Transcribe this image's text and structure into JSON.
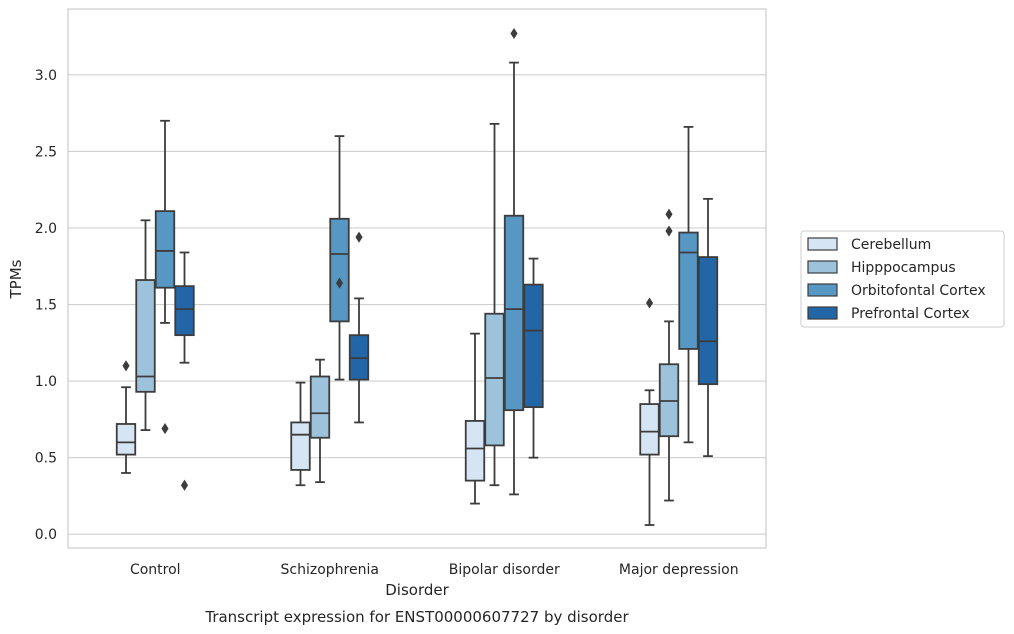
{
  "chart_data": {
    "type": "box",
    "title": "",
    "xlabel": "Disorder",
    "ylabel": "TPMs",
    "caption": "Transcript expression for ENST00000607727 by disorder",
    "ylim": [
      -0.09,
      3.43
    ],
    "yticks": [
      0.0,
      0.5,
      1.0,
      1.5,
      2.0,
      2.5,
      3.0
    ],
    "ytick_labels": [
      "0.0",
      "0.5",
      "1.0",
      "1.5",
      "2.0",
      "2.5",
      "3.0"
    ],
    "grid": "horizontal",
    "legend_position": "right",
    "categories": [
      "Control",
      "Schizophrenia",
      "Bipolar disorder",
      "Major depression"
    ],
    "series": [
      {
        "name": "Cerebellum",
        "color": "#d6e5f3",
        "boxes": [
          {
            "whislo": 0.4,
            "q1": 0.52,
            "med": 0.6,
            "q3": 0.72,
            "whishi": 0.96,
            "fliers": [
              1.1
            ]
          },
          {
            "whislo": 0.32,
            "q1": 0.42,
            "med": 0.65,
            "q3": 0.73,
            "whishi": 0.99,
            "fliers": []
          },
          {
            "whislo": 0.2,
            "q1": 0.35,
            "med": 0.56,
            "q3": 0.74,
            "whishi": 1.31,
            "fliers": []
          },
          {
            "whislo": 0.06,
            "q1": 0.52,
            "med": 0.67,
            "q3": 0.85,
            "whishi": 0.94,
            "fliers": [
              1.51
            ]
          }
        ]
      },
      {
        "name": "Hipppocampus",
        "color": "#9dc2dc",
        "boxes": [
          {
            "whislo": 0.68,
            "q1": 0.93,
            "med": 1.03,
            "q3": 1.66,
            "whishi": 2.05,
            "fliers": []
          },
          {
            "whislo": 0.34,
            "q1": 0.63,
            "med": 0.79,
            "q3": 1.03,
            "whishi": 1.14,
            "fliers": []
          },
          {
            "whislo": 0.32,
            "q1": 0.58,
            "med": 1.02,
            "q3": 1.44,
            "whishi": 2.68,
            "fliers": []
          },
          {
            "whislo": 0.22,
            "q1": 0.64,
            "med": 0.87,
            "q3": 1.11,
            "whishi": 1.39,
            "fliers": [
              1.98,
              2.09
            ]
          }
        ]
      },
      {
        "name": "Orbitofontal Cortex",
        "color": "#5797c4",
        "boxes": [
          {
            "whislo": 1.38,
            "q1": 1.61,
            "med": 1.85,
            "q3": 2.11,
            "whishi": 2.7,
            "fliers": [
              0.69
            ]
          },
          {
            "whislo": 1.01,
            "q1": 1.39,
            "med": 1.83,
            "q3": 2.06,
            "whishi": 2.6,
            "fliers": [
              1.64
            ]
          },
          {
            "whislo": 0.26,
            "q1": 0.81,
            "med": 1.47,
            "q3": 2.08,
            "whishi": 3.08,
            "fliers": [
              3.27
            ]
          },
          {
            "whislo": 0.6,
            "q1": 1.21,
            "med": 1.84,
            "q3": 1.97,
            "whishi": 2.66,
            "fliers": []
          }
        ]
      },
      {
        "name": "Prefrontal Cortex",
        "color": "#2366a8",
        "boxes": [
          {
            "whislo": 1.12,
            "q1": 1.3,
            "med": 1.47,
            "q3": 1.62,
            "whishi": 1.84,
            "fliers": [
              0.32
            ]
          },
          {
            "whislo": 0.73,
            "q1": 1.01,
            "med": 1.15,
            "q3": 1.3,
            "whishi": 1.54,
            "fliers": [
              1.94
            ]
          },
          {
            "whislo": 0.5,
            "q1": 0.83,
            "med": 1.33,
            "q3": 1.63,
            "whishi": 1.8,
            "fliers": []
          },
          {
            "whislo": 0.51,
            "q1": 0.98,
            "med": 1.26,
            "q3": 1.81,
            "whishi": 2.19,
            "fliers": []
          }
        ]
      }
    ]
  }
}
